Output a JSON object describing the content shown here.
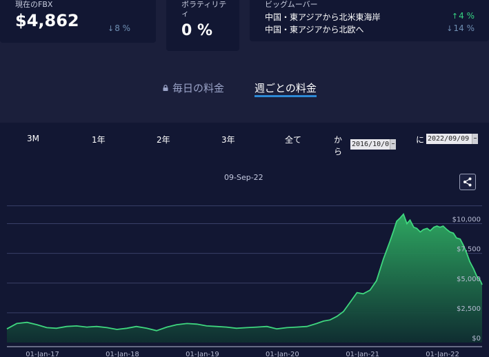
{
  "header": {
    "fbx": {
      "label": "現在のFBX",
      "value": "$4,862",
      "delta": "8 %",
      "delta_direction": "down"
    },
    "volatility": {
      "label": "ボラティリティ",
      "value": "0 %"
    },
    "big_movers": {
      "label": "ビッグムーバー",
      "rows": [
        {
          "name": "中国・東アジアから北米東海岸",
          "delta": "4 %",
          "direction": "up"
        },
        {
          "name": "中国・東アジアから北欧へ",
          "delta": "14 %",
          "direction": "down"
        }
      ]
    }
  },
  "tabs": {
    "daily": "毎日の料金",
    "weekly": "週ごとの料金",
    "active": "weekly"
  },
  "range": {
    "buttons": [
      "3M",
      "1年",
      "2年",
      "3年",
      "全て"
    ],
    "from_label_1": "か",
    "from_label_2": "ら",
    "from_value": "2016/10/0",
    "to_label": "に",
    "to_value": "2022/09/09"
  },
  "hover_date": "09-Sep-22",
  "colors": {
    "line": "#3fd77f",
    "fill_top": "#2fae63",
    "fill_bottom": "#0f2f31",
    "up": "#37d383",
    "down": "#6f8fb3",
    "accent_underline": "#2d8ad6"
  },
  "icons": {
    "lock": "lock-icon",
    "share": "share-icon",
    "down": "arrow-down-icon",
    "up": "arrow-up-icon"
  },
  "chart_data": {
    "type": "area",
    "x_ticks": [
      "01-Jan-17",
      "01-Jan-18",
      "01-Jan-19",
      "01-Jan-20",
      "01-Jan-21",
      "01-Jan-22"
    ],
    "y_ticks": [
      "$0",
      "$2,500",
      "$5,000",
      "$7,500",
      "$10,000"
    ],
    "y_tick_values": [
      0,
      2500,
      5000,
      7500,
      10000
    ],
    "ylim": [
      0,
      12000
    ],
    "xlim": [
      "2016-10-01",
      "2022-09-09"
    ],
    "grid": "horizontal",
    "series": [
      {
        "x": [
          "2016-10-01",
          "2016-11-15",
          "2017-01-01",
          "2017-02-15",
          "2017-04-01",
          "2017-05-15",
          "2017-07-01",
          "2017-08-15",
          "2017-10-01",
          "2017-11-15",
          "2018-01-01",
          "2018-02-15",
          "2018-04-01",
          "2018-05-15",
          "2018-07-01",
          "2018-08-15",
          "2018-10-01",
          "2018-11-15",
          "2019-01-01",
          "2019-02-15",
          "2019-04-01",
          "2019-05-15",
          "2019-07-01",
          "2019-08-15",
          "2019-10-01",
          "2019-11-15",
          "2020-01-01",
          "2020-02-15",
          "2020-04-01",
          "2020-05-15",
          "2020-07-01",
          "2020-08-15",
          "2020-09-15",
          "2020-10-15",
          "2020-11-15",
          "2020-12-15",
          "2021-01-15",
          "2021-02-15",
          "2021-03-15",
          "2021-04-15",
          "2021-05-15",
          "2021-06-15",
          "2021-07-15",
          "2021-08-01",
          "2021-08-15",
          "2021-09-01",
          "2021-09-15",
          "2021-10-01",
          "2021-10-15",
          "2021-11-01",
          "2021-11-15",
          "2021-12-01",
          "2021-12-15",
          "2022-01-01",
          "2022-01-15",
          "2022-02-01",
          "2022-02-15",
          "2022-03-01",
          "2022-03-15",
          "2022-04-01",
          "2022-04-15",
          "2022-05-01",
          "2022-05-15",
          "2022-06-01",
          "2022-06-15",
          "2022-07-01",
          "2022-07-15",
          "2022-08-01",
          "2022-08-15",
          "2022-09-01",
          "2022-09-09"
        ],
        "values": [
          1150,
          1600,
          1700,
          1500,
          1250,
          1200,
          1350,
          1400,
          1300,
          1350,
          1250,
          1100,
          1200,
          1350,
          1200,
          1000,
          1300,
          1500,
          1600,
          1550,
          1400,
          1350,
          1300,
          1200,
          1250,
          1300,
          1350,
          1150,
          1250,
          1300,
          1350,
          1600,
          1800,
          1900,
          2200,
          2600,
          3400,
          4200,
          4100,
          4400,
          5200,
          7000,
          8500,
          9400,
          10200,
          10500,
          10800,
          10000,
          10300,
          9700,
          9600,
          9300,
          9500,
          9600,
          9400,
          9700,
          9800,
          9700,
          9800,
          9500,
          9300,
          9200,
          8800,
          8700,
          8200,
          7500,
          6800,
          6200,
          5600,
          5200,
          4862
        ]
      }
    ]
  }
}
